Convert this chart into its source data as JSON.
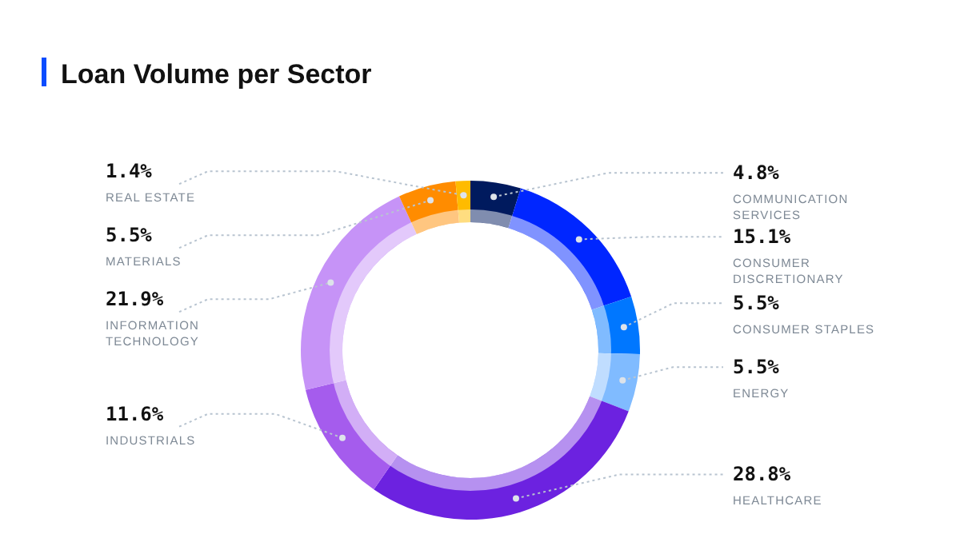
{
  "chart_data": {
    "type": "donut",
    "title": "Loan Volume per Sector",
    "categories": [
      "COMMUNICATION SERVICES",
      "CONSUMER DISCRETIONARY",
      "CONSUMER STAPLES",
      "ENERGY",
      "HEALTHCARE",
      "INDUSTRIALS",
      "INFORMATION TECHNOLOGY",
      "MATERIALS",
      "REAL ESTATE"
    ],
    "values": [
      4.8,
      15.1,
      5.5,
      5.5,
      28.8,
      11.6,
      21.9,
      5.5,
      1.4
    ],
    "value_labels": [
      "4.8%",
      "15.1%",
      "5.5%",
      "5.5%",
      "28.8%",
      "11.6%",
      "21.9%",
      "5.5%",
      "1.4%"
    ],
    "colors": [
      "#001a5e",
      "#0026ff",
      "#0077ff",
      "#80bbff",
      "#6c22e0",
      "#a55ced",
      "#c693f7",
      "#ff8c00",
      "#ffbb00"
    ]
  }
}
